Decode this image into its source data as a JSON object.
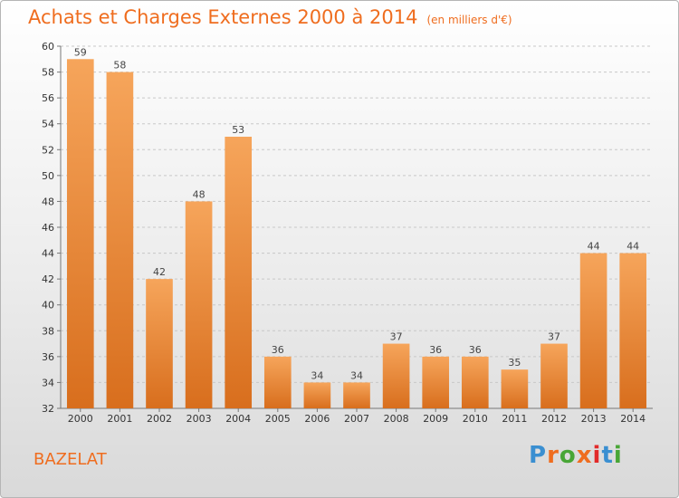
{
  "header": {
    "title": "Achats et Charges Externes 2000 à 2014",
    "unit": "(en milliers d'€)"
  },
  "location": "BAZELAT",
  "brand": {
    "name": "Proxiti",
    "colors": [
      "#3a8fd1",
      "#ef6d1f",
      "#48a636",
      "#ef6d1f",
      "#e22a2a",
      "#3a8fd1",
      "#48a636"
    ]
  },
  "colors": {
    "accent": "#ef6d1f",
    "bar_light": "#f6a55b",
    "bar_dark": "#d86e1d"
  },
  "chart_data": {
    "type": "bar",
    "categories": [
      "2000",
      "2001",
      "2002",
      "2003",
      "2004",
      "2005",
      "2006",
      "2007",
      "2008",
      "2009",
      "2010",
      "2011",
      "2012",
      "2013",
      "2014"
    ],
    "values": [
      59,
      58,
      42,
      48,
      53,
      36,
      34,
      34,
      37,
      36,
      36,
      35,
      37,
      44,
      44
    ],
    "ylim": [
      32,
      60
    ],
    "yticks": [
      32,
      34,
      36,
      38,
      40,
      42,
      44,
      46,
      48,
      50,
      52,
      54,
      56,
      58,
      60
    ],
    "grid": true
  }
}
